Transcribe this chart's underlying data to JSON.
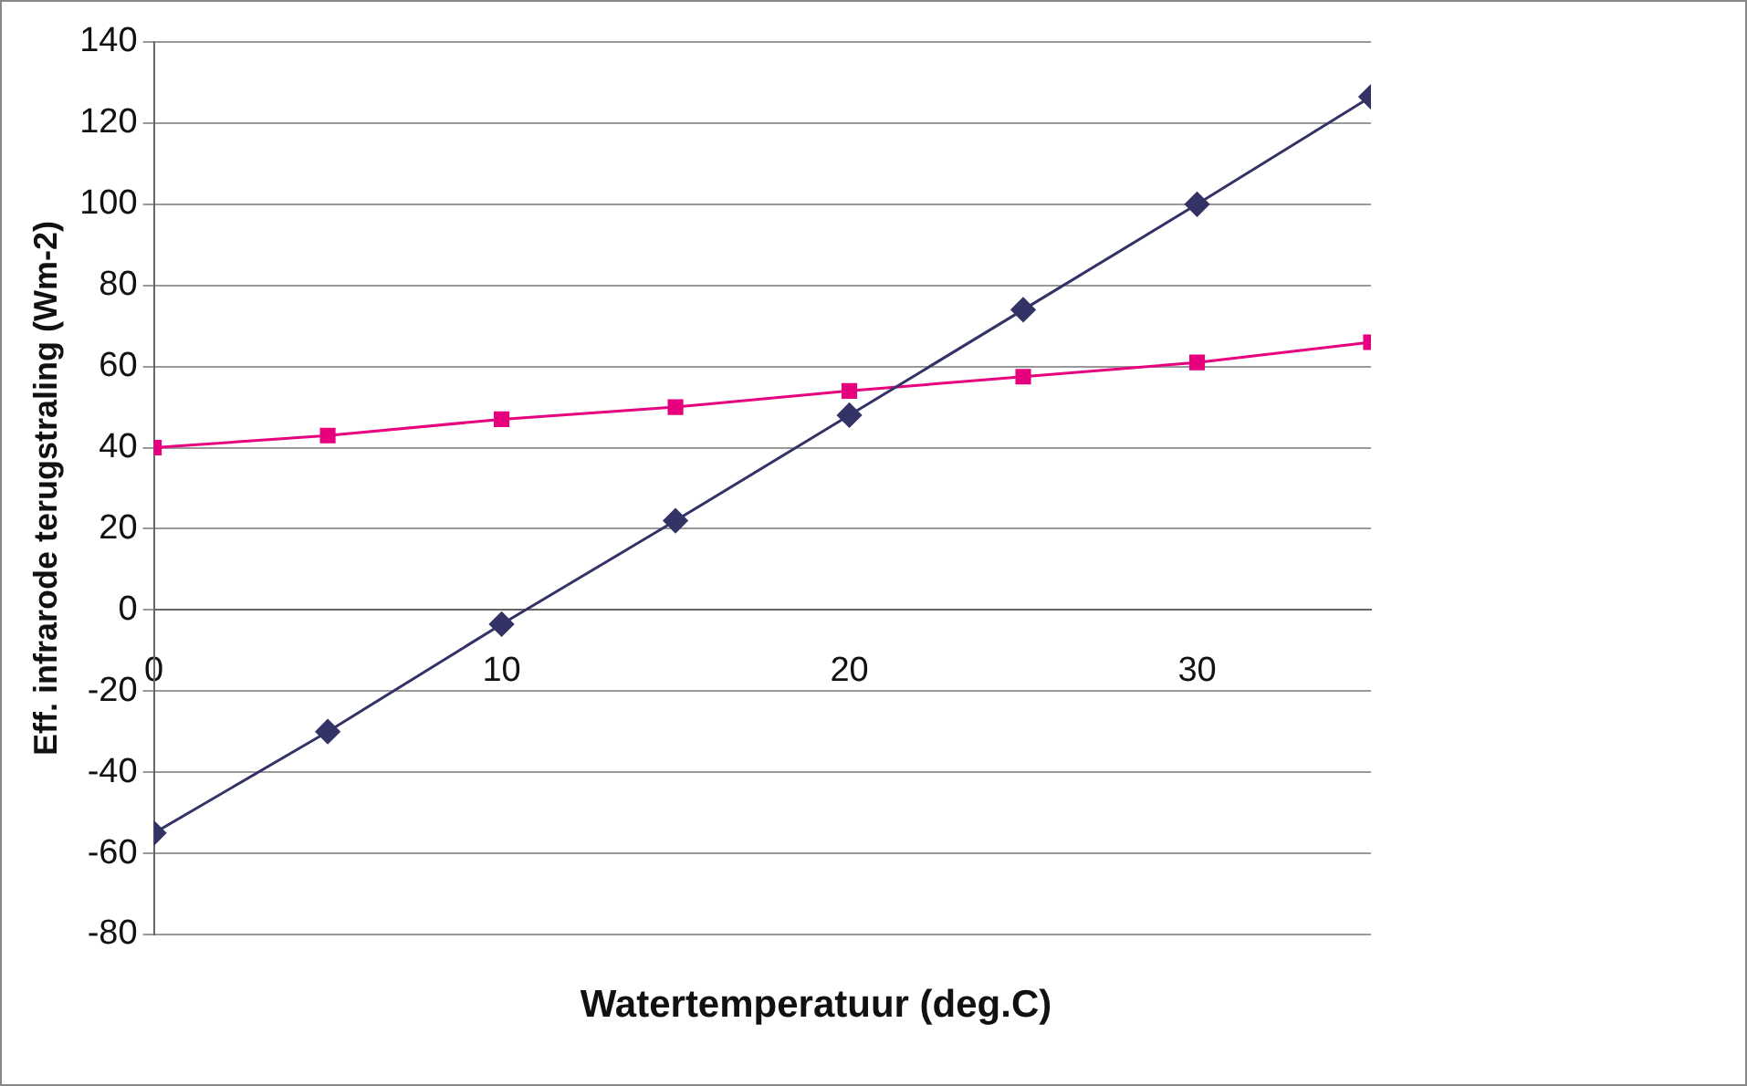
{
  "chart_data": {
    "type": "line",
    "xlabel": "Watertemperatuur (deg.C)",
    "ylabel": "Eff. infrarode terugstraling (Wm-2)",
    "x": [
      0,
      5,
      10,
      15,
      20,
      25,
      30,
      35
    ],
    "series": [
      {
        "color": "#333366",
        "marker": "diamond",
        "values": [
          -55,
          -30,
          -3.5,
          22,
          48,
          74,
          100,
          126.5
        ]
      },
      {
        "color": "#e6007e",
        "marker": "square",
        "values": [
          40,
          43,
          47,
          50,
          54,
          57.5,
          61,
          66
        ]
      }
    ],
    "xlim": [
      0,
      35
    ],
    "xticks": [
      0,
      10,
      20,
      30
    ],
    "ylim": [
      -80,
      140
    ],
    "yticks": [
      -80,
      -60,
      -40,
      -20,
      0,
      20,
      40,
      60,
      80,
      100,
      120,
      140
    ],
    "grid": "y",
    "legend": false
  }
}
